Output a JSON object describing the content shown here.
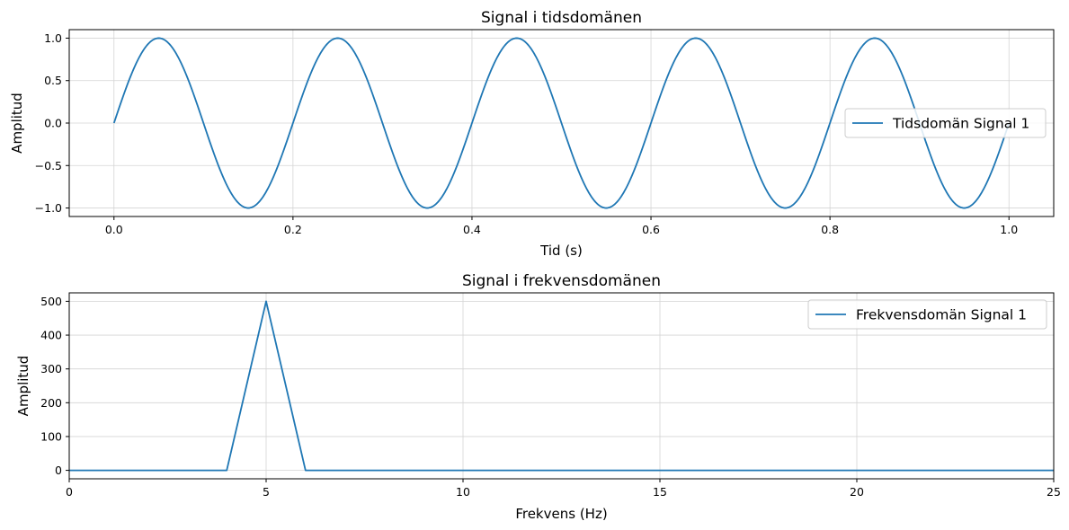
{
  "colors": {
    "series": "#1f77b4"
  },
  "chart_data": [
    {
      "type": "line",
      "title": "Signal i tidsdomänen",
      "xlabel": "Tid (s)",
      "ylabel": "Amplitud",
      "xlim": [
        -0.05,
        1.05
      ],
      "ylim": [
        -1.1,
        1.1
      ],
      "xticks": [
        0.0,
        0.2,
        0.4,
        0.6,
        0.8,
        1.0
      ],
      "xtick_labels": [
        "0.0",
        "0.2",
        "0.4",
        "0.6",
        "0.8",
        "1.0"
      ],
      "yticks": [
        -1.0,
        -0.5,
        0.0,
        0.5,
        1.0
      ],
      "ytick_labels": [
        "−1.0",
        "−0.5",
        "0.0",
        "0.5",
        "1.0"
      ],
      "grid": true,
      "legend_position": "right",
      "series": [
        {
          "name": "Tidsdomän Signal 1",
          "function": "sin",
          "amplitude": 1.0,
          "frequency_hz": 5,
          "x_start": 0.0,
          "x_end": 1.0
        }
      ]
    },
    {
      "type": "line",
      "title": "Signal i frekvensdomänen",
      "xlabel": "Frekvens (Hz)",
      "ylabel": "Amplitud",
      "xlim": [
        0,
        25
      ],
      "ylim": [
        -25,
        525
      ],
      "xticks": [
        0,
        5,
        10,
        15,
        20,
        25
      ],
      "xtick_labels": [
        "0",
        "5",
        "10",
        "15",
        "20",
        "25"
      ],
      "yticks": [
        0,
        100,
        200,
        300,
        400,
        500
      ],
      "ytick_labels": [
        "0",
        "100",
        "200",
        "300",
        "400",
        "500"
      ],
      "grid": true,
      "legend_position": "top-right",
      "series": [
        {
          "name": "Frekvensdomän Signal 1",
          "x": [
            0,
            1,
            2,
            3,
            4,
            5,
            6,
            7,
            8,
            9,
            10,
            15,
            20,
            25
          ],
          "y": [
            0,
            0,
            0,
            0,
            0,
            500,
            0,
            0,
            0,
            0,
            0,
            0,
            0,
            0
          ]
        }
      ]
    }
  ]
}
